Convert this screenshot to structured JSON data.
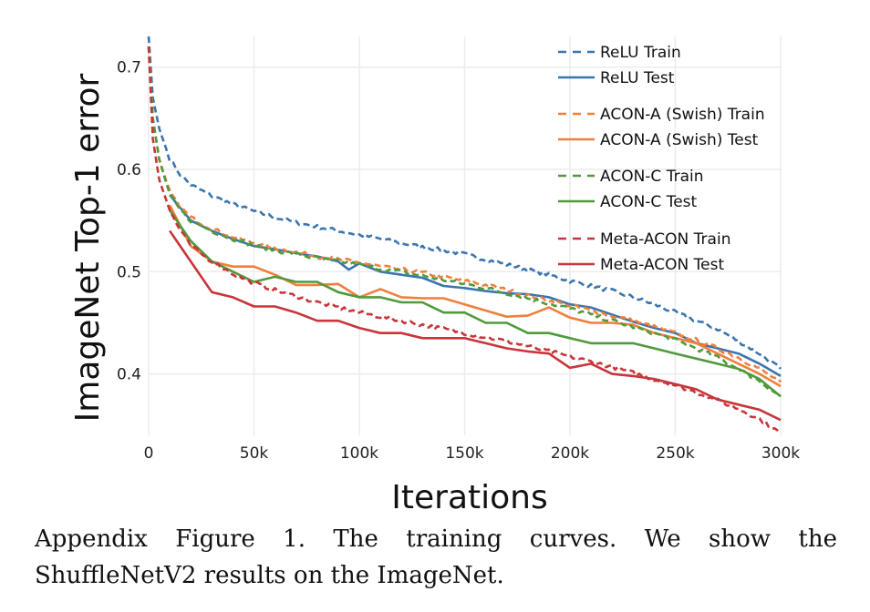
{
  "caption": "Appendix Figure 1. The training curves.  We show the ShuffleNetV2 results on the ImageNet.",
  "chart_data": {
    "type": "line",
    "title": "",
    "xlabel": "Iterations",
    "ylabel": "ImageNet Top-1 error",
    "xlim": [
      0,
      300000
    ],
    "ylim": [
      0.34,
      0.73
    ],
    "x_ticks": [
      0,
      50000,
      100000,
      150000,
      200000,
      250000,
      300000
    ],
    "x_tick_labels": [
      "0",
      "50k",
      "100k",
      "150k",
      "200k",
      "250k",
      "300k"
    ],
    "y_ticks": [
      0.4,
      0.5,
      0.6,
      0.7
    ],
    "y_tick_labels": [
      "0.4",
      "0.5",
      "0.6",
      "0.7"
    ],
    "grid": true,
    "legend_position": "top-right",
    "series": [
      {
        "name": "ReLU Train",
        "style": "dashed",
        "color": "#3a75b0",
        "x": [
          0,
          2000,
          5000,
          10000,
          15000,
          20000,
          30000,
          40000,
          50000,
          60000,
          70000,
          80000,
          90000,
          100000,
          110000,
          120000,
          130000,
          140000,
          150000,
          160000,
          170000,
          180000,
          190000,
          200000,
          210000,
          220000,
          230000,
          240000,
          250000,
          260000,
          270000,
          280000,
          290000,
          300000
        ],
        "y": [
          0.73,
          0.67,
          0.64,
          0.61,
          0.595,
          0.585,
          0.574,
          0.566,
          0.559,
          0.553,
          0.548,
          0.544,
          0.54,
          0.536,
          0.532,
          0.528,
          0.524,
          0.521,
          0.517,
          0.512,
          0.507,
          0.502,
          0.497,
          0.491,
          0.486,
          0.481,
          0.475,
          0.468,
          0.46,
          0.452,
          0.444,
          0.432,
          0.42,
          0.405
        ]
      },
      {
        "name": "ReLU Test",
        "style": "solid",
        "color": "#3a75b0",
        "x": [
          10000,
          20000,
          30000,
          40000,
          50000,
          60000,
          70000,
          80000,
          90000,
          95000,
          100000,
          110000,
          120000,
          130000,
          140000,
          150000,
          160000,
          170000,
          180000,
          190000,
          200000,
          210000,
          220000,
          230000,
          240000,
          250000,
          260000,
          270000,
          280000,
          290000,
          300000
        ],
        "y": [
          0.575,
          0.55,
          0.54,
          0.532,
          0.525,
          0.522,
          0.518,
          0.515,
          0.51,
          0.502,
          0.508,
          0.5,
          0.497,
          0.494,
          0.486,
          0.484,
          0.481,
          0.479,
          0.478,
          0.475,
          0.468,
          0.465,
          0.458,
          0.451,
          0.445,
          0.44,
          0.43,
          0.425,
          0.42,
          0.41,
          0.398
        ]
      },
      {
        "name": "ACON-A (Swish) Train",
        "style": "dashed",
        "color": "#f07f3c",
        "x": [
          0,
          2000,
          5000,
          10000,
          15000,
          20000,
          30000,
          40000,
          50000,
          60000,
          70000,
          80000,
          90000,
          100000,
          110000,
          120000,
          130000,
          140000,
          150000,
          160000,
          170000,
          180000,
          190000,
          200000,
          210000,
          220000,
          230000,
          240000,
          250000,
          260000,
          270000,
          280000,
          290000,
          300000
        ],
        "y": [
          0.72,
          0.65,
          0.61,
          0.578,
          0.563,
          0.553,
          0.542,
          0.534,
          0.528,
          0.523,
          0.519,
          0.515,
          0.512,
          0.509,
          0.505,
          0.502,
          0.499,
          0.495,
          0.491,
          0.487,
          0.482,
          0.477,
          0.472,
          0.467,
          0.462,
          0.457,
          0.452,
          0.446,
          0.44,
          0.433,
          0.425,
          0.416,
          0.405,
          0.392
        ]
      },
      {
        "name": "ACON-A (Swish) Test",
        "style": "solid",
        "color": "#f07f3c",
        "x": [
          10000,
          20000,
          30000,
          40000,
          50000,
          60000,
          70000,
          80000,
          90000,
          100000,
          110000,
          120000,
          130000,
          140000,
          150000,
          160000,
          170000,
          180000,
          190000,
          200000,
          210000,
          220000,
          230000,
          240000,
          250000,
          260000,
          270000,
          280000,
          290000,
          300000
        ],
        "y": [
          0.565,
          0.525,
          0.51,
          0.505,
          0.505,
          0.497,
          0.487,
          0.487,
          0.488,
          0.475,
          0.483,
          0.475,
          0.474,
          0.474,
          0.468,
          0.462,
          0.456,
          0.457,
          0.465,
          0.455,
          0.45,
          0.45,
          0.448,
          0.44,
          0.435,
          0.43,
          0.42,
          0.41,
          0.4,
          0.388
        ]
      },
      {
        "name": "ACON-C Train",
        "style": "dashed",
        "color": "#4f9a3c",
        "x": [
          0,
          2000,
          5000,
          10000,
          15000,
          20000,
          30000,
          40000,
          50000,
          60000,
          70000,
          80000,
          90000,
          100000,
          110000,
          120000,
          130000,
          140000,
          150000,
          160000,
          170000,
          180000,
          190000,
          200000,
          210000,
          220000,
          230000,
          240000,
          250000,
          260000,
          270000,
          280000,
          290000,
          300000
        ],
        "y": [
          0.72,
          0.65,
          0.61,
          0.575,
          0.56,
          0.55,
          0.54,
          0.532,
          0.526,
          0.521,
          0.517,
          0.513,
          0.51,
          0.507,
          0.503,
          0.5,
          0.496,
          0.492,
          0.488,
          0.484,
          0.479,
          0.474,
          0.469,
          0.464,
          0.458,
          0.452,
          0.446,
          0.44,
          0.433,
          0.425,
          0.416,
          0.405,
          0.393,
          0.378
        ]
      },
      {
        "name": "ACON-C Test",
        "style": "solid",
        "color": "#4f9a3c",
        "x": [
          10000,
          20000,
          30000,
          40000,
          50000,
          60000,
          70000,
          80000,
          90000,
          100000,
          110000,
          120000,
          130000,
          140000,
          150000,
          160000,
          170000,
          180000,
          190000,
          200000,
          210000,
          220000,
          230000,
          240000,
          250000,
          260000,
          270000,
          280000,
          290000,
          300000
        ],
        "y": [
          0.56,
          0.53,
          0.51,
          0.5,
          0.49,
          0.495,
          0.49,
          0.49,
          0.48,
          0.475,
          0.475,
          0.47,
          0.47,
          0.46,
          0.46,
          0.45,
          0.45,
          0.44,
          0.44,
          0.435,
          0.43,
          0.43,
          0.43,
          0.425,
          0.42,
          0.415,
          0.41,
          0.405,
          0.395,
          0.378
        ]
      },
      {
        "name": "Meta-ACON Train",
        "style": "dashed",
        "color": "#c8353a",
        "x": [
          0,
          2000,
          5000,
          10000,
          15000,
          20000,
          30000,
          40000,
          50000,
          60000,
          70000,
          80000,
          90000,
          100000,
          110000,
          120000,
          130000,
          140000,
          150000,
          160000,
          170000,
          180000,
          190000,
          200000,
          210000,
          220000,
          230000,
          240000,
          250000,
          260000,
          270000,
          280000,
          290000,
          300000
        ],
        "y": [
          0.72,
          0.63,
          0.59,
          0.56,
          0.54,
          0.525,
          0.51,
          0.498,
          0.489,
          0.482,
          0.476,
          0.47,
          0.465,
          0.46,
          0.456,
          0.452,
          0.448,
          0.444,
          0.44,
          0.436,
          0.432,
          0.427,
          0.422,
          0.417,
          0.412,
          0.407,
          0.401,
          0.395,
          0.389,
          0.382,
          0.374,
          0.366,
          0.356,
          0.342
        ]
      },
      {
        "name": "Meta-ACON Test",
        "style": "solid",
        "color": "#c8353a",
        "x": [
          10000,
          20000,
          30000,
          40000,
          50000,
          60000,
          70000,
          80000,
          90000,
          100000,
          110000,
          120000,
          130000,
          140000,
          150000,
          160000,
          170000,
          180000,
          190000,
          200000,
          210000,
          220000,
          230000,
          240000,
          250000,
          260000,
          270000,
          280000,
          290000,
          300000
        ],
        "y": [
          0.54,
          0.51,
          0.48,
          0.475,
          0.466,
          0.466,
          0.46,
          0.452,
          0.452,
          0.445,
          0.44,
          0.44,
          0.435,
          0.435,
          0.435,
          0.43,
          0.425,
          0.422,
          0.42,
          0.406,
          0.41,
          0.4,
          0.398,
          0.395,
          0.39,
          0.385,
          0.375,
          0.37,
          0.365,
          0.355
        ]
      }
    ]
  }
}
